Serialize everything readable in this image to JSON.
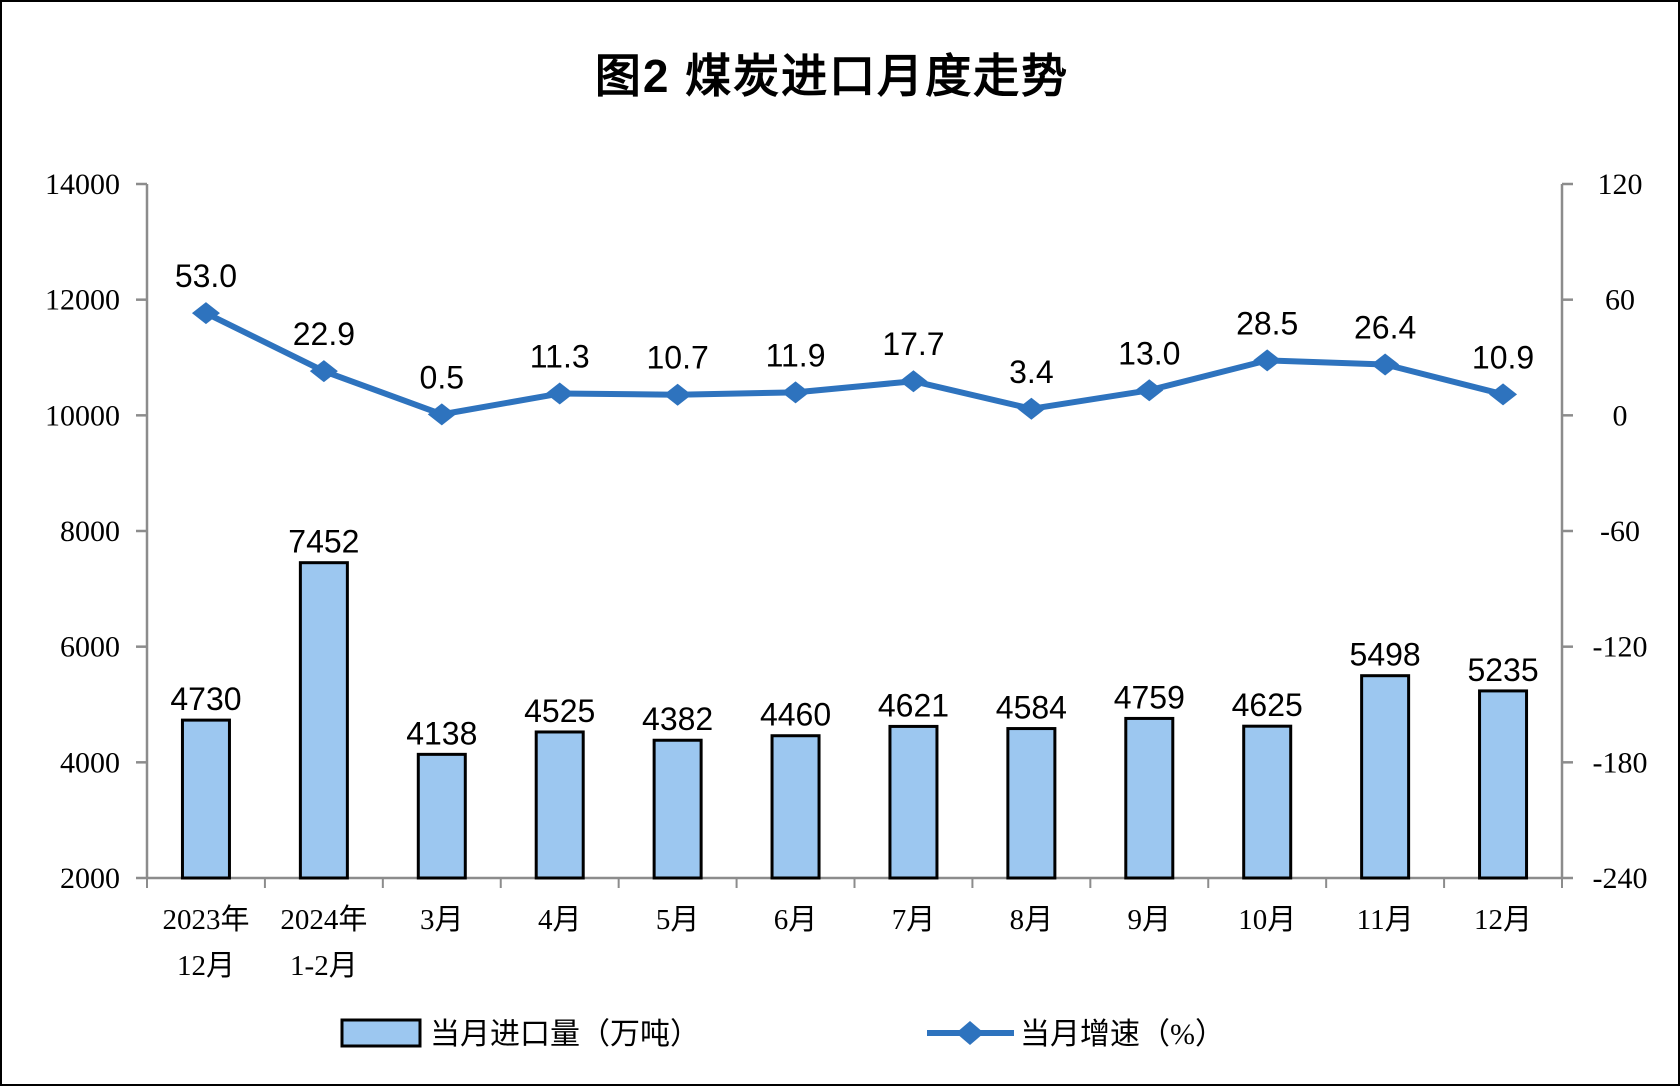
{
  "title": "图2 煤炭进口月度走势",
  "chart_data": {
    "type": "bar",
    "subtype": "bar-line-combo",
    "categories": [
      [
        "2023年",
        "12月"
      ],
      [
        "2024年",
        "1-2月"
      ],
      [
        "3月"
      ],
      [
        "4月"
      ],
      [
        "5月"
      ],
      [
        "6月"
      ],
      [
        "7月"
      ],
      [
        "8月"
      ],
      [
        "9月"
      ],
      [
        "10月"
      ],
      [
        "11月"
      ],
      [
        "12月"
      ]
    ],
    "series": [
      {
        "name": "当月进口量（万吨）",
        "kind": "bar",
        "axis": "left",
        "values": [
          4730,
          7452,
          4138,
          4525,
          4382,
          4460,
          4621,
          4584,
          4759,
          4625,
          5498,
          5235
        ]
      },
      {
        "name": "当月增速（%）",
        "kind": "line",
        "axis": "right",
        "label_decimals": 1,
        "values": [
          53.0,
          22.9,
          0.5,
          11.3,
          10.7,
          11.9,
          17.7,
          3.4,
          13.0,
          28.5,
          26.4,
          10.9
        ]
      }
    ],
    "axes": {
      "left": {
        "min": 2000,
        "max": 14000,
        "step": 2000,
        "ticks": [
          14000,
          12000,
          10000,
          8000,
          6000,
          4000,
          2000
        ]
      },
      "right": {
        "min": -240,
        "max": 120,
        "step": 60,
        "ticks": [
          120,
          60,
          0,
          -60,
          -120,
          -180,
          -240
        ]
      }
    },
    "grid": false,
    "legend_position": "bottom",
    "colors": {
      "bar_fill": "#9CC7F0",
      "bar_border": "#000000",
      "line": "#2E73BE",
      "axis": "#8C8C8C",
      "text": "#000000"
    }
  }
}
